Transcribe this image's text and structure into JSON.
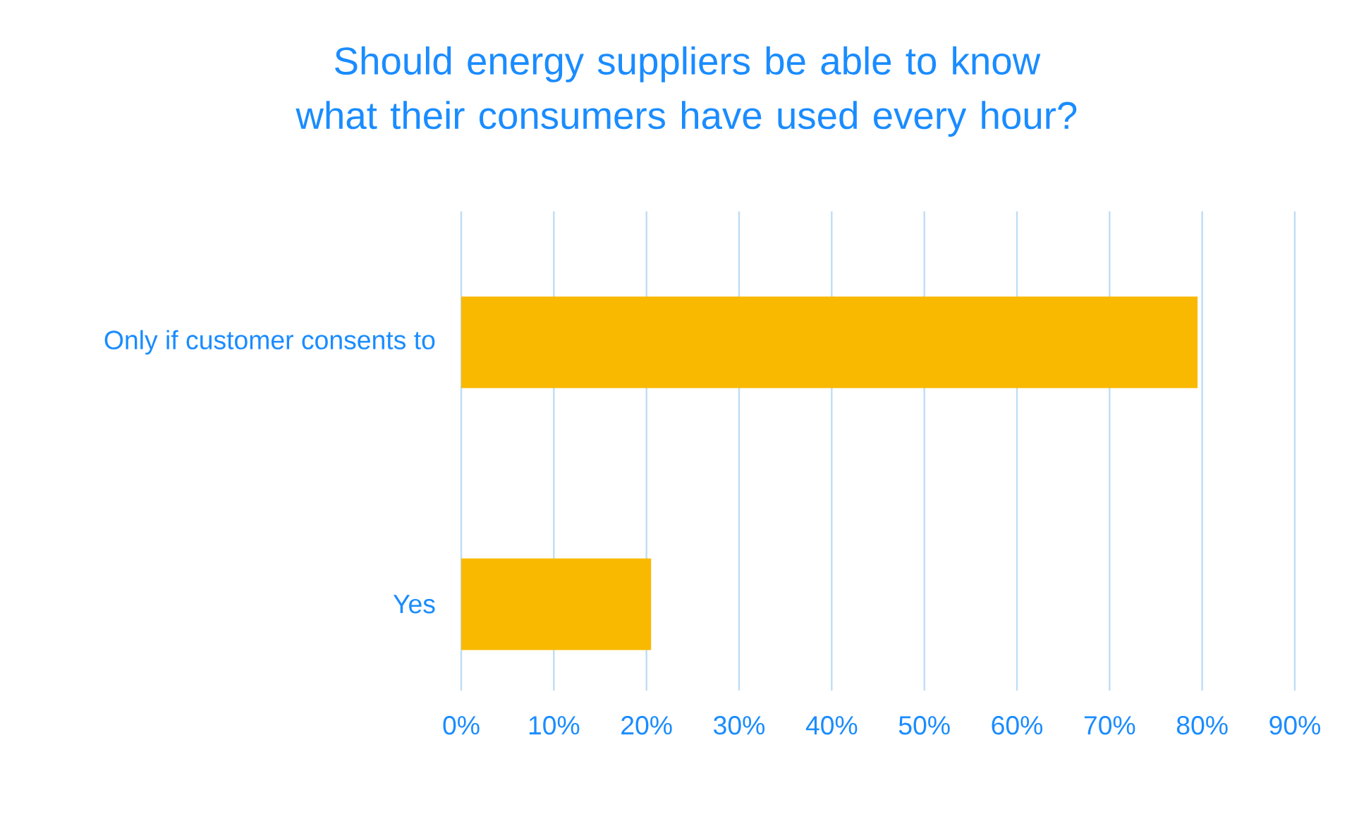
{
  "chart_data": {
    "type": "bar",
    "orientation": "horizontal",
    "title": "Should energy suppliers be able to know what their consumers have used every hour?",
    "categories": [
      "Only if customer consents to",
      "Yes"
    ],
    "values": [
      79.5,
      20.5
    ],
    "color": "#f9b900",
    "xlim": [
      0,
      90
    ],
    "xticks": [
      {
        "value": 0,
        "label": "0%"
      },
      {
        "value": 10,
        "label": "10%"
      },
      {
        "value": 20,
        "label": "20%"
      },
      {
        "value": 30,
        "label": "30%"
      },
      {
        "value": 40,
        "label": "40%"
      },
      {
        "value": 50,
        "label": "50%"
      },
      {
        "value": 60,
        "label": "60%"
      },
      {
        "value": 70,
        "label": "70%"
      },
      {
        "value": 80,
        "label": "80%"
      },
      {
        "value": 90,
        "label": "90%"
      }
    ],
    "grid": "x"
  }
}
